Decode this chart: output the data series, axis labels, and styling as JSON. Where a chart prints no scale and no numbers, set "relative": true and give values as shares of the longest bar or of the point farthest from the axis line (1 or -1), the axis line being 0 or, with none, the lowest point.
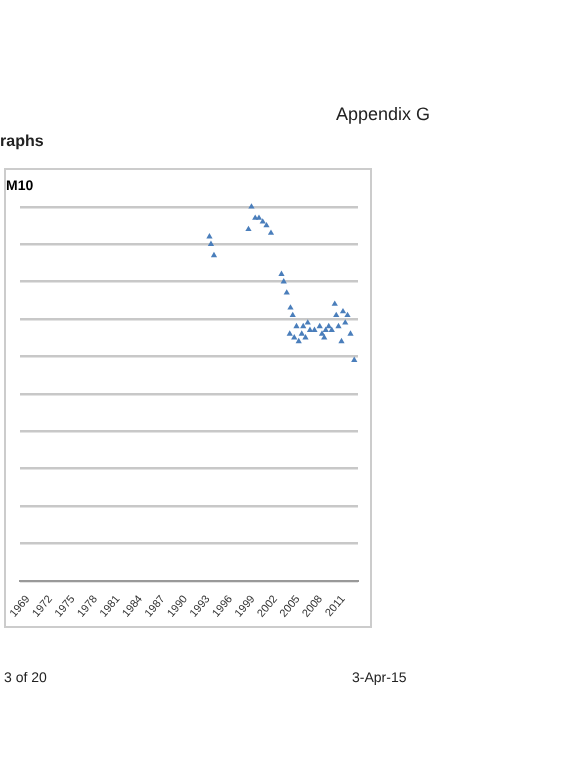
{
  "chart_data": {
    "type": "scatter",
    "title": "M10",
    "relative": true,
    "marker": "triangle",
    "grid": "y",
    "annotations": [
      "Appendix G",
      "raphs",
      "3 of 20",
      "3-Apr-15"
    ],
    "xlim": [
      1968,
      2013
    ],
    "xticks": [
      1969,
      1972,
      1975,
      1978,
      1981,
      1984,
      1987,
      1990,
      1993,
      1996,
      1999,
      2002,
      2005,
      2008,
      2011
    ],
    "series": [
      {
        "color": "#4a7ebb",
        "x": [
          1993.2,
          1993.4,
          1993.8,
          1998.4,
          1998.8,
          1999.3,
          1999.8,
          2000.3,
          2000.8,
          2001.4,
          2002.8,
          2003.1,
          2003.5,
          2004.0,
          2004.3,
          2003.9,
          2004.5,
          2004.8,
          2005.1,
          2005.5,
          2005.7,
          2006.0,
          2006.3,
          2006.6,
          2007.2,
          2007.9,
          2008.2,
          2008.5,
          2008.7,
          2009.1,
          2009.5,
          2009.9,
          2010.1,
          2010.4,
          2010.8,
          2011.0,
          2011.3,
          2011.6,
          2012.0,
          2012.5
        ],
        "values": [
          0.92,
          0.9,
          0.87,
          0.94,
          1,
          0.97,
          0.97,
          0.96,
          0.95,
          0.93,
          0.82,
          0.8,
          0.77,
          0.73,
          0.71,
          0.66,
          0.65,
          0.68,
          0.64,
          0.66,
          0.68,
          0.65,
          0.69,
          0.67,
          0.67,
          0.68,
          0.66,
          0.65,
          0.67,
          0.68,
          0.67,
          0.74,
          0.71,
          0.68,
          0.64,
          0.72,
          0.69,
          0.71,
          0.66,
          0.59
        ]
      }
    ]
  }
}
